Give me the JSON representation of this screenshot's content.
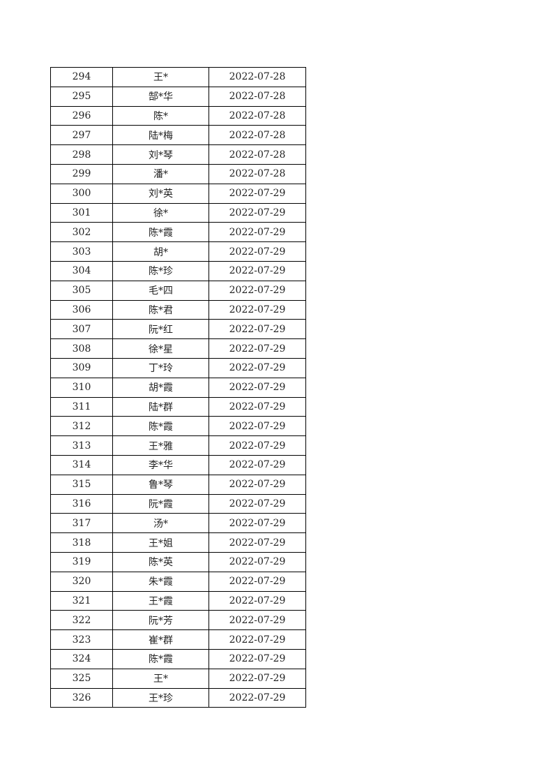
{
  "table": {
    "rows": [
      [
        "294",
        "王*",
        "2022-07-28"
      ],
      [
        "295",
        "郜*华",
        "2022-07-28"
      ],
      [
        "296",
        "陈*",
        "2022-07-28"
      ],
      [
        "297",
        "陆*梅",
        "2022-07-28"
      ],
      [
        "298",
        "刘*琴",
        "2022-07-28"
      ],
      [
        "299",
        "潘*",
        "2022-07-28"
      ],
      [
        "300",
        "刘*英",
        "2022-07-29"
      ],
      [
        "301",
        "徐*",
        "2022-07-29"
      ],
      [
        "302",
        "陈*霞",
        "2022-07-29"
      ],
      [
        "303",
        "胡*",
        "2022-07-29"
      ],
      [
        "304",
        "陈*珍",
        "2022-07-29"
      ],
      [
        "305",
        "毛*四",
        "2022-07-29"
      ],
      [
        "306",
        "陈*君",
        "2022-07-29"
      ],
      [
        "307",
        "阮*红",
        "2022-07-29"
      ],
      [
        "308",
        "徐*星",
        "2022-07-29"
      ],
      [
        "309",
        "丁*玲",
        "2022-07-29"
      ],
      [
        "310",
        "胡*霞",
        "2022-07-29"
      ],
      [
        "311",
        "陆*群",
        "2022-07-29"
      ],
      [
        "312",
        "陈*霞",
        "2022-07-29"
      ],
      [
        "313",
        "王*雅",
        "2022-07-29"
      ],
      [
        "314",
        "李*华",
        "2022-07-29"
      ],
      [
        "315",
        "鲁*琴",
        "2022-07-29"
      ],
      [
        "316",
        "阮*霞",
        "2022-07-29"
      ],
      [
        "317",
        "汤*",
        "2022-07-29"
      ],
      [
        "318",
        "王*姐",
        "2022-07-29"
      ],
      [
        "319",
        "陈*英",
        "2022-07-29"
      ],
      [
        "320",
        "朱*霞",
        "2022-07-29"
      ],
      [
        "321",
        "王*霞",
        "2022-07-29"
      ],
      [
        "322",
        "阮*芳",
        "2022-07-29"
      ],
      [
        "323",
        "崔*群",
        "2022-07-29"
      ],
      [
        "324",
        "陈*霞",
        "2022-07-29"
      ],
      [
        "325",
        "王*",
        "2022-07-29"
      ],
      [
        "326",
        "王*珍",
        "2022-07-29"
      ]
    ]
  }
}
